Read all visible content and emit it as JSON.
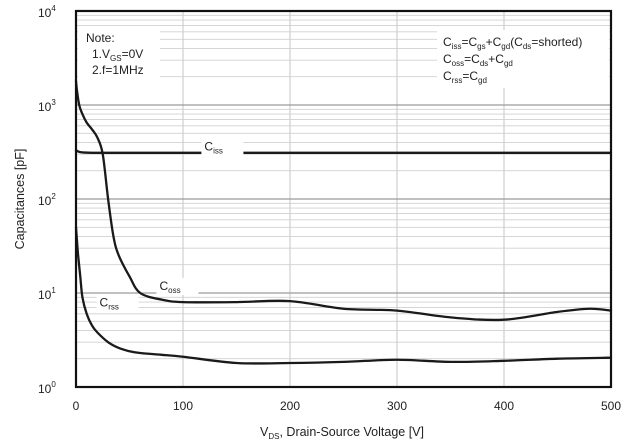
{
  "chart_data": {
    "type": "line",
    "ylabel": "Capacitances [pF]",
    "xlabel": {
      "prefix": "V",
      "sub": "DS",
      "suffix": ", Drain-Source Voltage [V]"
    },
    "xlim": [
      0,
      500
    ],
    "ylim": [
      1,
      10000
    ],
    "yscale": "log",
    "grid": true,
    "x_ticks": [
      "0",
      "100",
      "200",
      "300",
      "400",
      "500"
    ],
    "x_tick_values": [
      0,
      100,
      200,
      300,
      400,
      500
    ],
    "y_ticks": [
      {
        "value": 1,
        "base": "10",
        "exp": "0"
      },
      {
        "value": 10,
        "base": "10",
        "exp": "1"
      },
      {
        "value": 100,
        "base": "10",
        "exp": "2"
      },
      {
        "value": 1000,
        "base": "10",
        "exp": "3"
      },
      {
        "value": 10000,
        "base": "10",
        "exp": "4"
      }
    ],
    "note": {
      "title": "Note:",
      "lines": [
        {
          "prefix": "1.V",
          "sub": "GS",
          "suffix": "=0V"
        },
        {
          "prefix": "2.f=1MHz",
          "sub": "",
          "suffix": ""
        }
      ]
    },
    "formulas": [
      [
        {
          "t": "C"
        },
        {
          "s": "iss"
        },
        {
          "t": "=C"
        },
        {
          "s": "gs"
        },
        {
          "t": "+C"
        },
        {
          "s": "gd"
        },
        {
          "t": "(C"
        },
        {
          "s": "ds"
        },
        {
          "t": "=shorted)"
        }
      ],
      [
        {
          "t": "C"
        },
        {
          "s": "oss"
        },
        {
          "t": "=C"
        },
        {
          "s": "ds"
        },
        {
          "t": "+C"
        },
        {
          "s": "gd"
        }
      ],
      [
        {
          "t": "C"
        },
        {
          "s": "rss"
        },
        {
          "t": "=C"
        },
        {
          "s": "gd"
        }
      ]
    ],
    "series": [
      {
        "name": "Ciss",
        "label_main": "C",
        "label_sub": "iss",
        "label_at": [
          120,
          330
        ],
        "x": [
          0,
          1,
          2,
          4,
          8,
          15,
          30,
          50,
          100,
          200,
          300,
          400,
          500
        ],
        "y": [
          330,
          325,
          320,
          315,
          312,
          310,
          310,
          310,
          310,
          310,
          310,
          310,
          310
        ]
      },
      {
        "name": "Coss",
        "label_main": "C",
        "label_sub": "oss",
        "label_at": [
          78,
          10.8
        ],
        "x": [
          0,
          1,
          3,
          6,
          10,
          15,
          20,
          25,
          30,
          35,
          40,
          50,
          60,
          80,
          100,
          150,
          200,
          250,
          300,
          350,
          400,
          450,
          480,
          500
        ],
        "y": [
          1800,
          1400,
          1000,
          800,
          650,
          550,
          450,
          300,
          100,
          40,
          25,
          15,
          10,
          8.5,
          8,
          8,
          8.2,
          6.8,
          6.5,
          5.5,
          5.2,
          6.3,
          6.8,
          6.5
        ]
      },
      {
        "name": "Crss",
        "label_main": "C",
        "label_sub": "rss",
        "label_at": [
          22,
          7.2
        ],
        "x": [
          0,
          1,
          2,
          4,
          6,
          10,
          15,
          20,
          30,
          40,
          50,
          60,
          80,
          100,
          150,
          200,
          250,
          300,
          350,
          400,
          450,
          500
        ],
        "y": [
          50,
          35,
          25,
          15,
          9,
          6,
          4.5,
          3.8,
          3,
          2.6,
          2.4,
          2.3,
          2.2,
          2.1,
          1.8,
          1.8,
          1.85,
          1.95,
          1.85,
          1.9,
          2.0,
          2.05
        ]
      }
    ]
  }
}
